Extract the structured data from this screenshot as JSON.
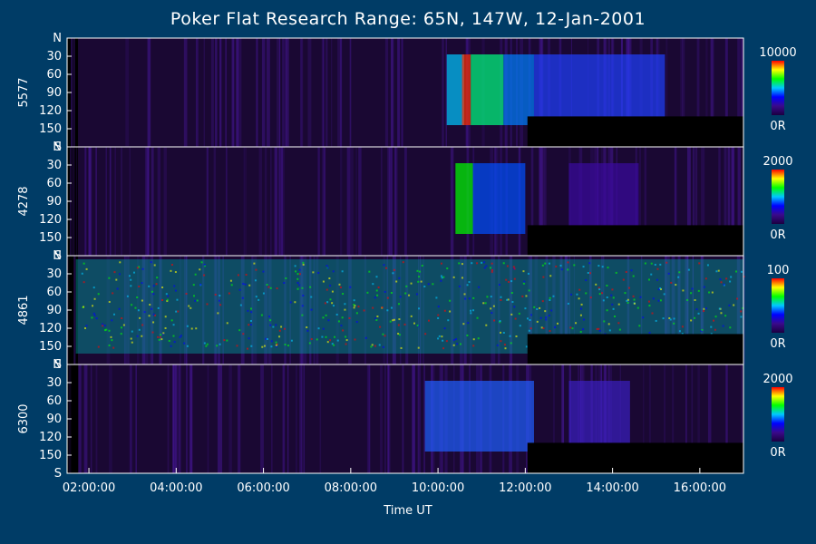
{
  "chart_data": {
    "type": "heatmap",
    "title": "Poker Flat Research Range: 65N, 147W, 12-Jan-2001",
    "xlabel": "Time UT",
    "x_ticks": [
      "02:00:00",
      "04:00:00",
      "06:00:00",
      "08:00:00",
      "10:00:00",
      "12:00:00",
      "14:00:00",
      "16:00:00"
    ],
    "x_range_hours": [
      1.5,
      17.0
    ],
    "y_ticks": [
      "N",
      "30",
      "60",
      "90",
      "120",
      "150",
      "S"
    ],
    "y_range_deg": [
      0,
      180
    ],
    "panels": [
      {
        "label": "5577",
        "colorbar_max": "10000",
        "colorbar_min": "0R"
      },
      {
        "label": "4278",
        "colorbar_max": "2000",
        "colorbar_min": "0R"
      },
      {
        "label": "4861",
        "colorbar_max": "100",
        "colorbar_min": "0R"
      },
      {
        "label": "6300",
        "colorbar_max": "2000",
        "colorbar_min": "0R"
      }
    ],
    "colors": {
      "background": "#003c66",
      "panel_base": "#1a0833",
      "colormap": [
        "#1a0040",
        "#3a0a8a",
        "#0000ff",
        "#00c8ff",
        "#00ff00",
        "#ffff00",
        "#ff0000"
      ]
    }
  }
}
